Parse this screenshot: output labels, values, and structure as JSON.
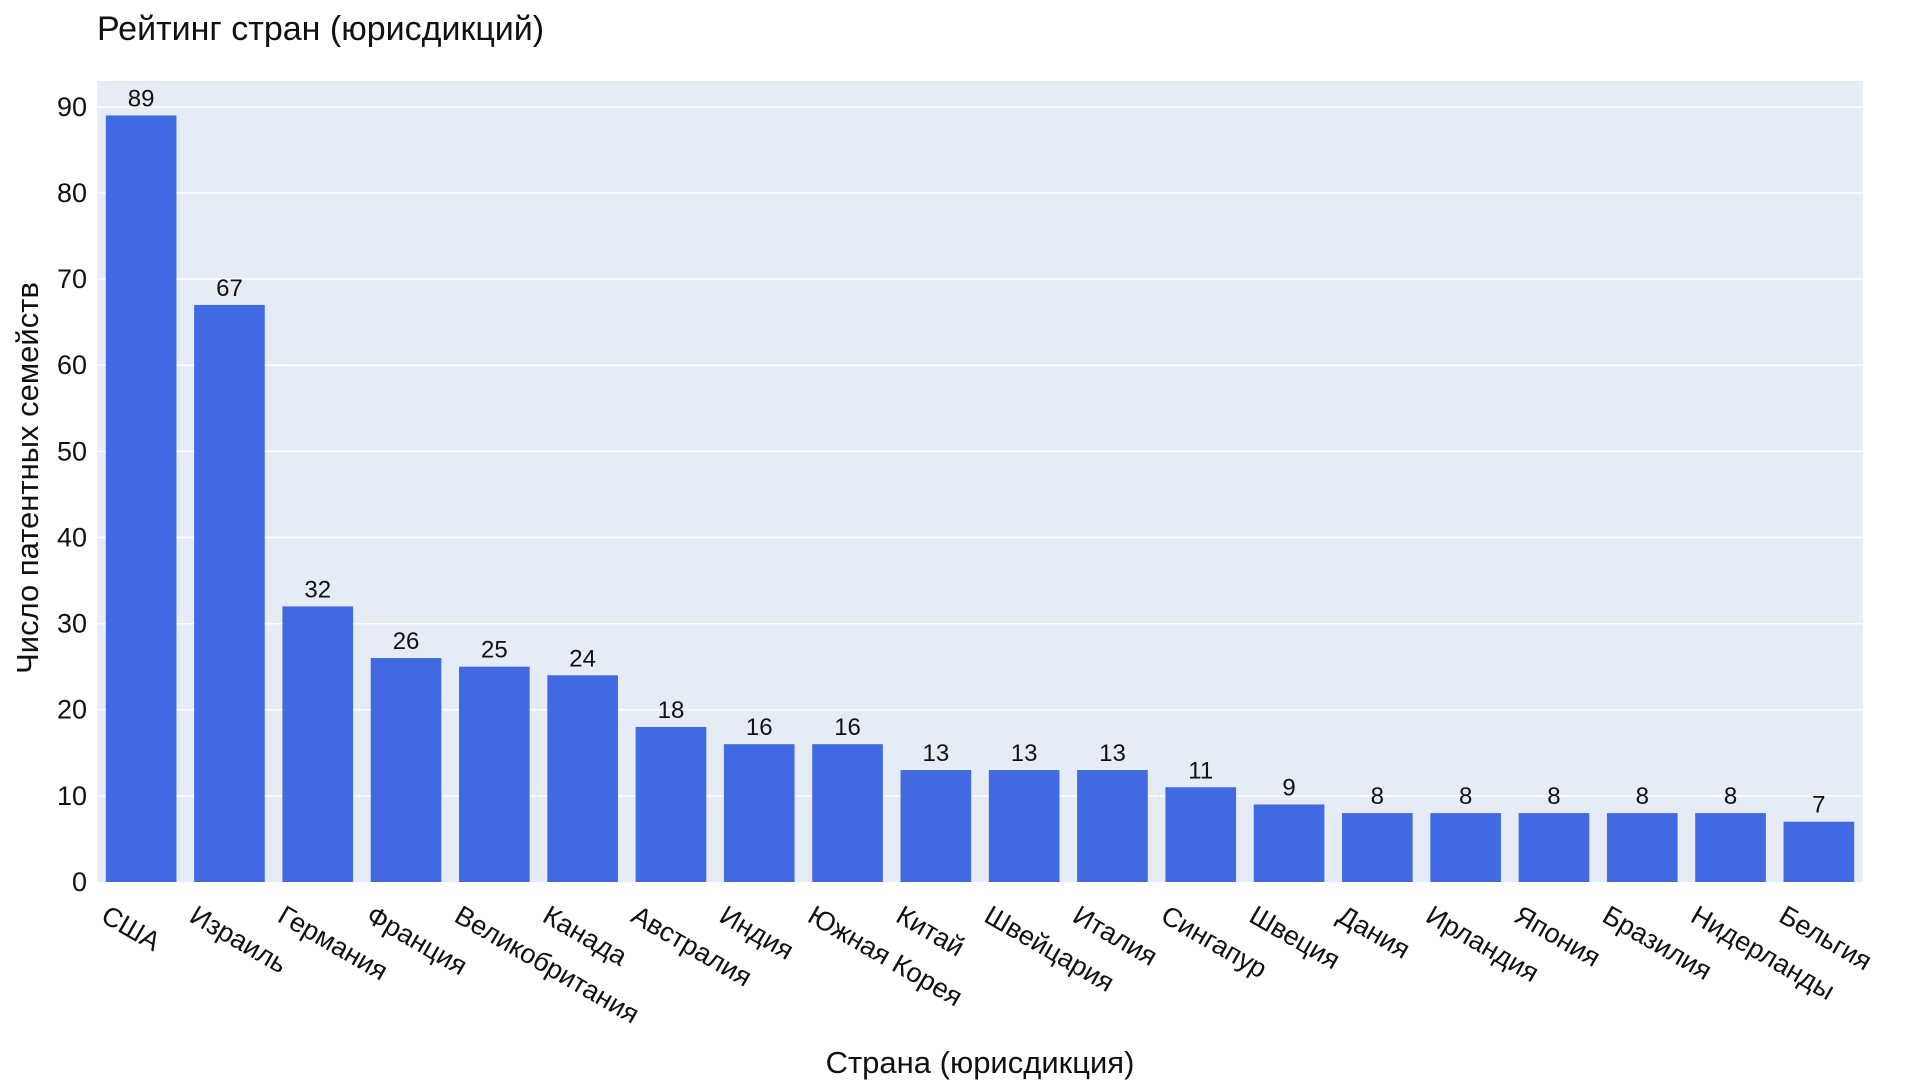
{
  "chart_data": {
    "type": "bar",
    "title": "Рейтинг стран (юрисдикций)",
    "xlabel": "Страна (юрисдикция)",
    "ylabel": "Число патентных семейств",
    "categories": [
      "США",
      "Израиль",
      "Германия",
      "Франция",
      "Великобритания",
      "Канада",
      "Австралия",
      "Индия",
      "Южная Корея",
      "Китай",
      "Швейцария",
      "Италия",
      "Сингапур",
      "Швеция",
      "Дания",
      "Ирландия",
      "Япония",
      "Бразилия",
      "Нидерланды",
      "Бельгия"
    ],
    "values": [
      89,
      67,
      32,
      26,
      25,
      24,
      18,
      16,
      16,
      13,
      13,
      13,
      11,
      9,
      8,
      8,
      8,
      8,
      8,
      7
    ],
    "ylim": [
      0,
      93
    ],
    "yticks": [
      0,
      10,
      20,
      30,
      40,
      50,
      60,
      70,
      80,
      90
    ],
    "grid": true,
    "data_labels": true,
    "colors": {
      "bar": "#4169e1",
      "plot_background": "#e5ecf6",
      "grid": "#ffffff"
    }
  }
}
